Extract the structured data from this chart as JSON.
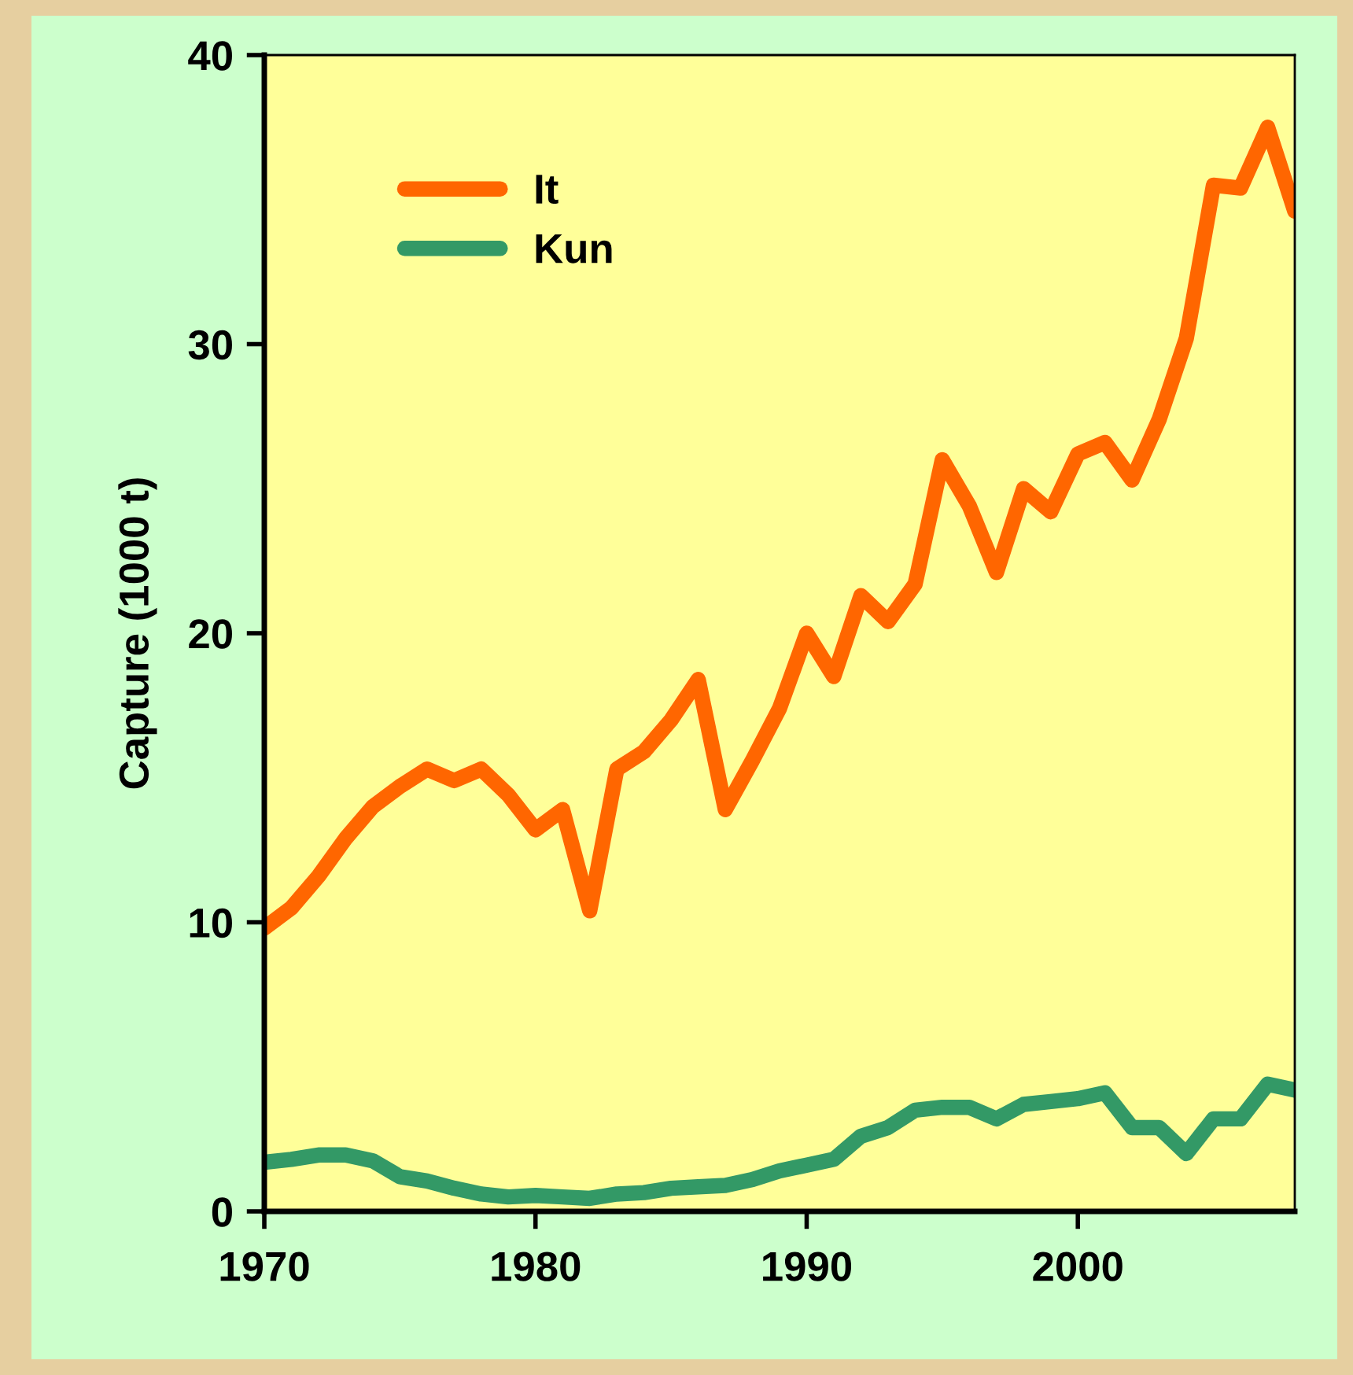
{
  "chart_data": {
    "type": "line",
    "ylabel": "Capture (1000 t)",
    "x": [
      1970,
      1971,
      1972,
      1973,
      1974,
      1975,
      1976,
      1977,
      1978,
      1979,
      1980,
      1981,
      1982,
      1983,
      1984,
      1985,
      1986,
      1987,
      1988,
      1989,
      1990,
      1991,
      1992,
      1993,
      1994,
      1995,
      1996,
      1997,
      1998,
      1999,
      2000,
      2001,
      2002,
      2003,
      2004,
      2005,
      2006,
      2007,
      2008
    ],
    "series": [
      {
        "name": "It",
        "color": "#ff6600",
        "values": [
          9.8,
          10.5,
          11.6,
          12.9,
          14.0,
          14.7,
          15.3,
          14.9,
          15.3,
          14.4,
          13.2,
          13.9,
          10.4,
          15.3,
          15.9,
          17.0,
          18.4,
          13.9,
          15.6,
          17.4,
          20.0,
          18.5,
          21.3,
          20.4,
          21.7,
          26.0,
          24.4,
          22.1,
          25.0,
          24.2,
          26.2,
          26.6,
          25.3,
          27.4,
          30.2,
          35.5,
          35.4,
          37.5,
          34.6
        ]
      },
      {
        "name": "Kun",
        "color": "#339966",
        "values": [
          1.7,
          1.8,
          1.95,
          1.95,
          1.75,
          1.2,
          1.05,
          0.8,
          0.6,
          0.5,
          0.55,
          0.5,
          0.45,
          0.6,
          0.65,
          0.8,
          0.85,
          0.9,
          1.1,
          1.4,
          1.6,
          1.8,
          2.6,
          2.9,
          3.5,
          3.6,
          3.6,
          3.2,
          3.7,
          3.8,
          3.9,
          4.1,
          2.9,
          2.9,
          2.0,
          3.2,
          3.2,
          4.4,
          4.2
        ]
      }
    ],
    "xlim": [
      1970,
      2008
    ],
    "xticks": [
      1970,
      1980,
      1990,
      2000
    ],
    "ylim": [
      0,
      40
    ],
    "yticks": [
      0,
      10,
      20,
      30,
      40
    ],
    "grid": false,
    "legend": "top left"
  }
}
